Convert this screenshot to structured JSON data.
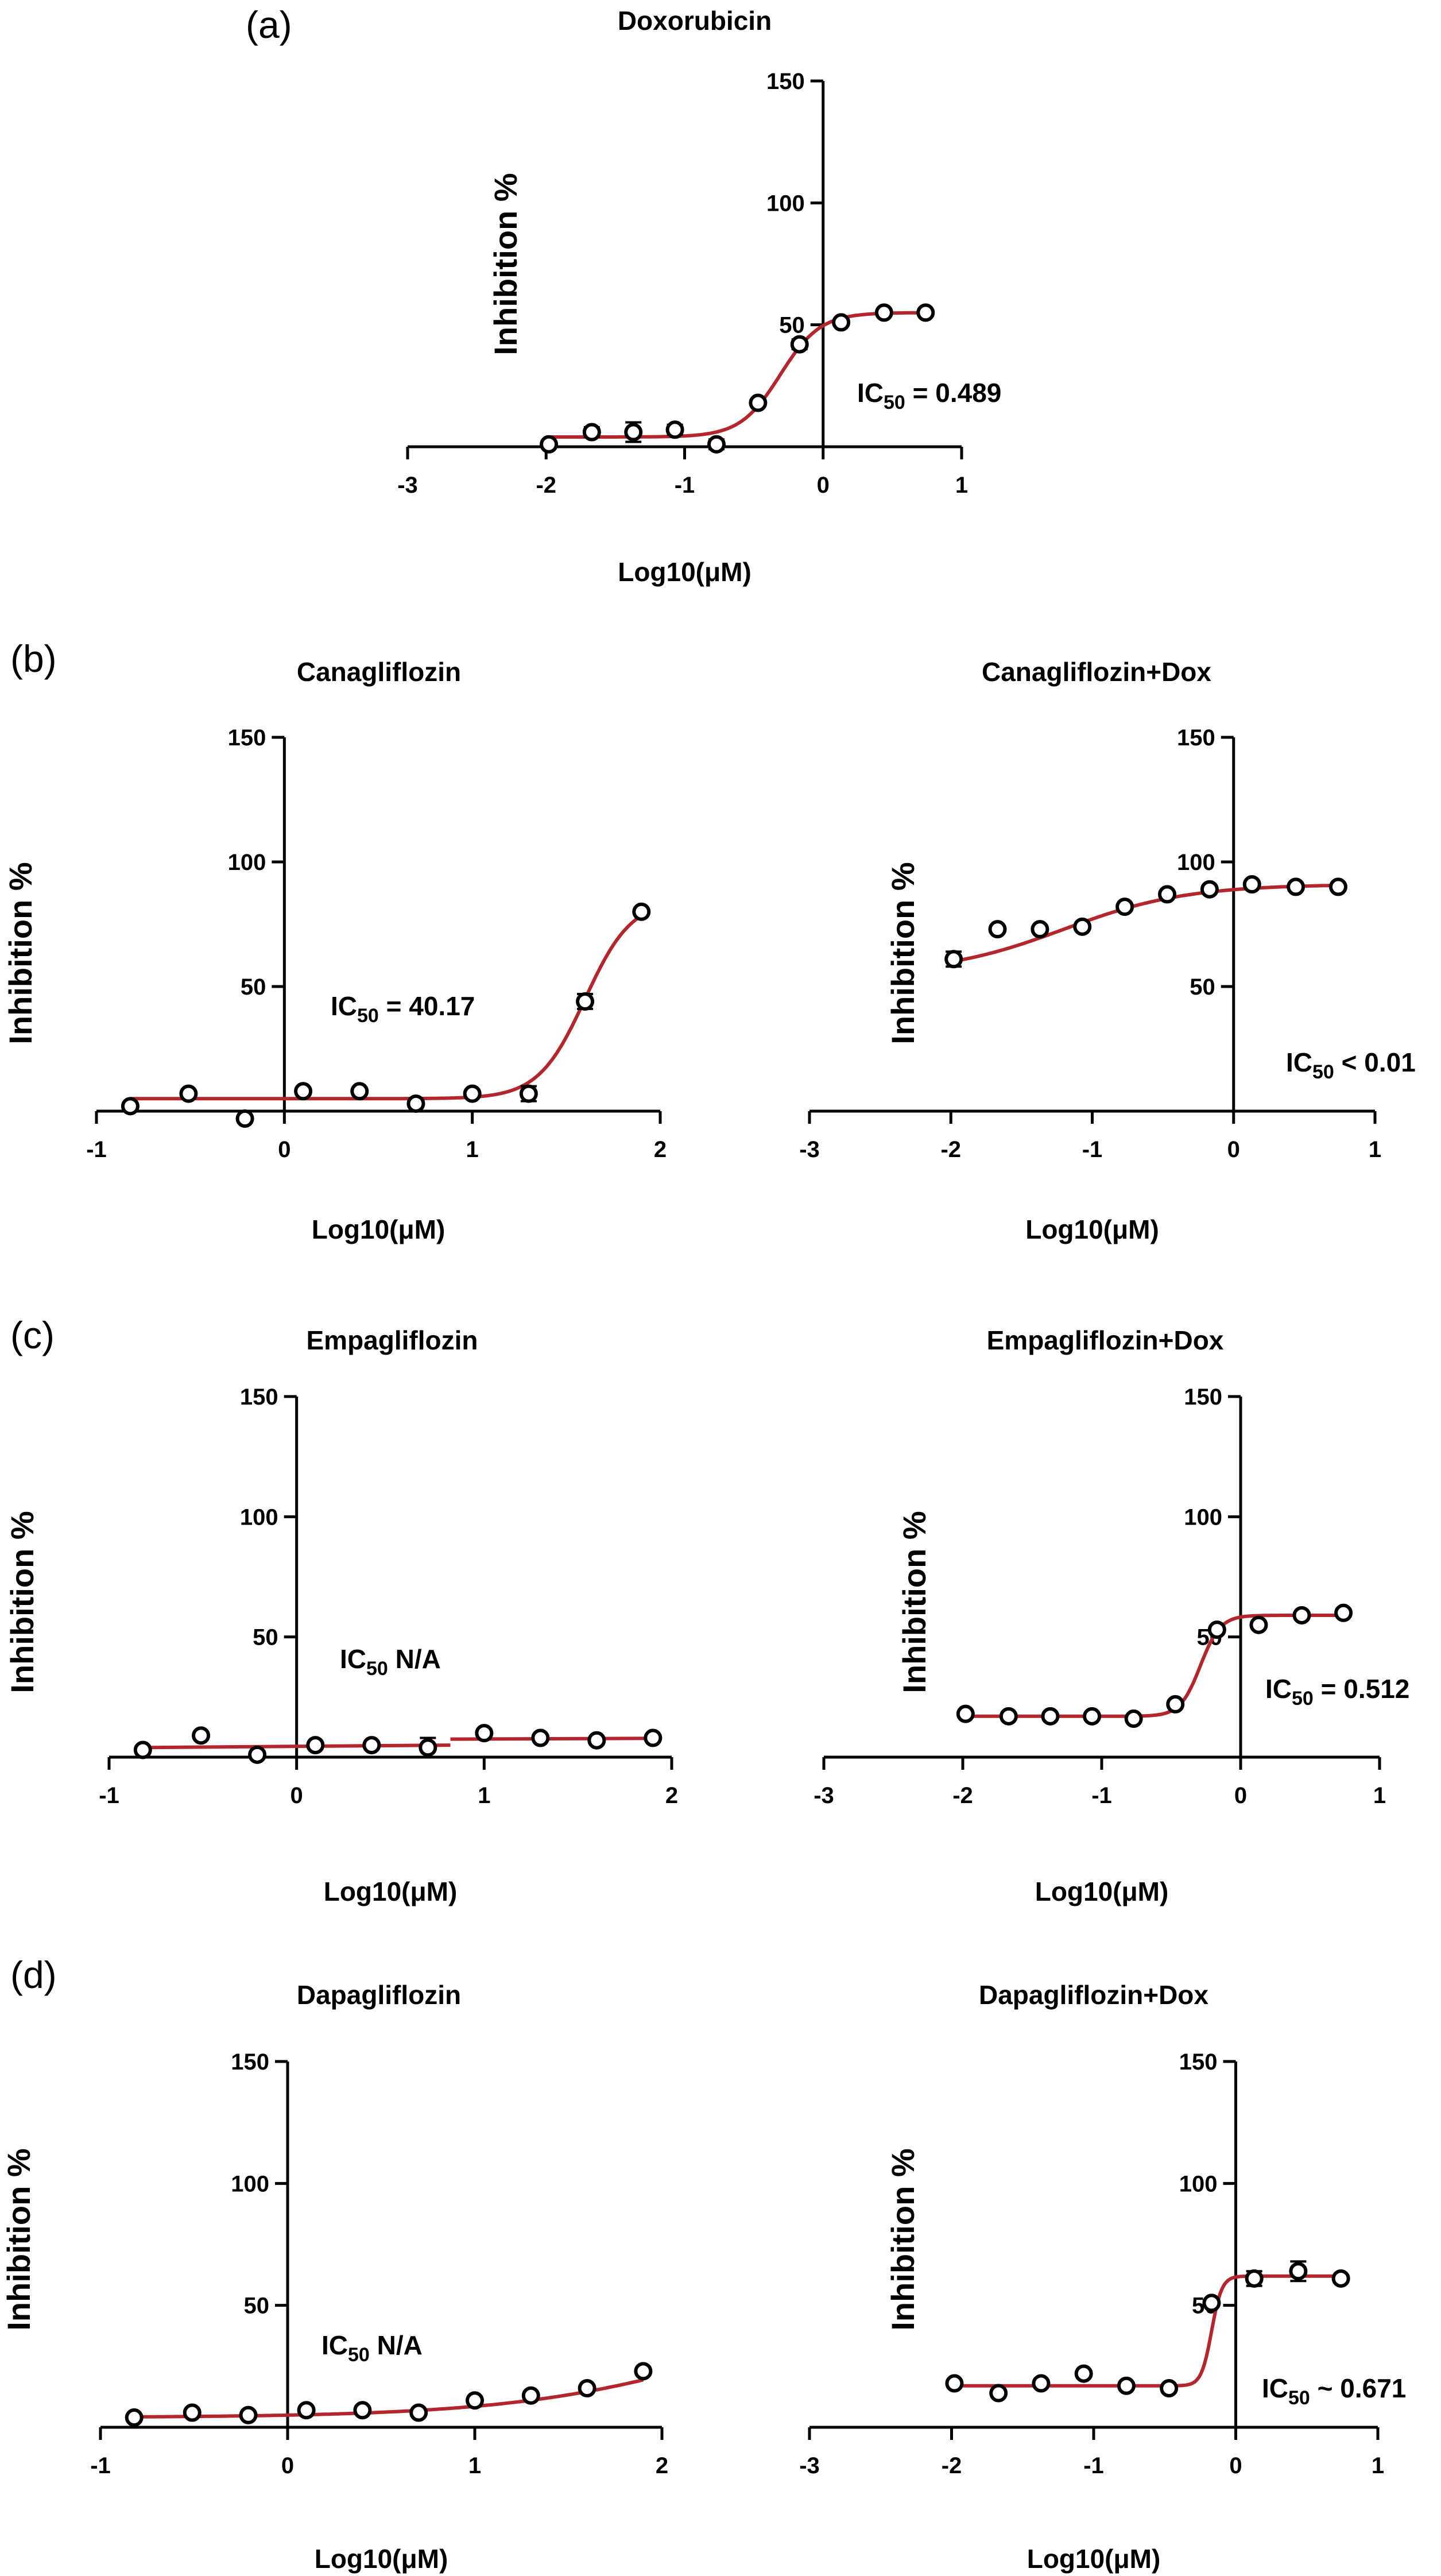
{
  "colors": {
    "curve": "#b3262b",
    "axis": "#000000",
    "marker": "#000000"
  },
  "panel_labels": [
    "(a)",
    "(b)",
    "(c)",
    "(d)"
  ],
  "chart_data": [
    {
      "type": "scatter",
      "title": "Doxorubicin",
      "xlabel": "Log10(μM)",
      "ylabel": "Inhibition %",
      "xlim": [
        -3,
        1
      ],
      "ylim": [
        0,
        150
      ],
      "xticks": [
        "-3",
        "-2",
        "-1",
        "0",
        "1"
      ],
      "yticks": [
        "50",
        "100",
        "150"
      ],
      "ic50": {
        "prefix": "IC",
        "sub": "50",
        "rest": " = 0.489"
      },
      "points": [
        {
          "x": -1.98,
          "y": 1,
          "err": 0
        },
        {
          "x": -1.67,
          "y": 6,
          "err": 2
        },
        {
          "x": -1.37,
          "y": 6,
          "err": 4
        },
        {
          "x": -1.07,
          "y": 7,
          "err": 2
        },
        {
          "x": -0.77,
          "y": 1,
          "err": 2
        },
        {
          "x": -0.47,
          "y": 18,
          "err": 1
        },
        {
          "x": -0.17,
          "y": 42,
          "err": 2
        },
        {
          "x": 0.13,
          "y": 51,
          "err": 1
        },
        {
          "x": 0.44,
          "y": 55,
          "err": 1
        },
        {
          "x": 0.74,
          "y": 55,
          "err": 1
        }
      ],
      "curve": {
        "bottom": 4,
        "top": 55,
        "logIC50": -0.31,
        "hill": 3,
        "xmin": -2.0,
        "xmax": 0.74
      }
    },
    {
      "type": "scatter",
      "title": "Canagliflozin",
      "xlabel": "Log10(μM)",
      "ylabel": "Inhibition %",
      "xlim": [
        -1,
        2
      ],
      "ylim": [
        0,
        150
      ],
      "xticks": [
        "-1",
        "0",
        "1",
        "2"
      ],
      "yticks": [
        "50",
        "100",
        "150"
      ],
      "ic50": {
        "prefix": "IC",
        "sub": "50",
        "rest": " = 40.17"
      },
      "points": [
        {
          "x": -0.82,
          "y": 2,
          "err": 1
        },
        {
          "x": -0.51,
          "y": 7,
          "err": 1
        },
        {
          "x": -0.21,
          "y": -3,
          "err": 1
        },
        {
          "x": 0.1,
          "y": 8,
          "err": 1
        },
        {
          "x": 0.4,
          "y": 8,
          "err": 1
        },
        {
          "x": 0.7,
          "y": 3,
          "err": 1
        },
        {
          "x": 1.0,
          "y": 7,
          "err": 1
        },
        {
          "x": 1.3,
          "y": 7,
          "err": 3
        },
        {
          "x": 1.6,
          "y": 44,
          "err": 3
        },
        {
          "x": 1.9,
          "y": 80,
          "err": 1
        }
      ],
      "curve": {
        "bottom": 5,
        "top": 85,
        "logIC50": 1.6,
        "hill": 3.5,
        "xmin": -0.82,
        "xmax": 1.9
      }
    },
    {
      "type": "scatter",
      "title": "Canagliflozin+Dox",
      "xlabel": "Log10(μM)",
      "ylabel": "Inhibition %",
      "xlim": [
        -3,
        1
      ],
      "ylim": [
        0,
        150
      ],
      "xticks": [
        "-3",
        "-2",
        "-1",
        "0",
        "1"
      ],
      "yticks": [
        "50",
        "100",
        "150"
      ],
      "ic50": {
        "prefix": "IC",
        "sub": "50",
        "rest": " < 0.01"
      },
      "points": [
        {
          "x": -1.98,
          "y": 61,
          "err": 3
        },
        {
          "x": -1.67,
          "y": 73,
          "err": 1
        },
        {
          "x": -1.37,
          "y": 73,
          "err": 1
        },
        {
          "x": -1.07,
          "y": 74,
          "err": 1
        },
        {
          "x": -0.77,
          "y": 82,
          "err": 1
        },
        {
          "x": -0.47,
          "y": 87,
          "err": 1
        },
        {
          "x": -0.17,
          "y": 89,
          "err": 1
        },
        {
          "x": 0.13,
          "y": 91,
          "err": 1
        },
        {
          "x": 0.44,
          "y": 90,
          "err": 1
        },
        {
          "x": 0.74,
          "y": 90,
          "err": 1
        }
      ],
      "curve": {
        "bottom": 55,
        "top": 91,
        "logIC50": -1.2,
        "hill": 1.0,
        "xmin": -2.0,
        "xmax": 0.74
      }
    },
    {
      "type": "scatter",
      "title": "Empagliflozin",
      "xlabel": "Log10(μM)",
      "ylabel": "Inhibition %",
      "xlim": [
        -1,
        2
      ],
      "ylim": [
        0,
        150
      ],
      "xticks": [
        "-1",
        "0",
        "1",
        "2"
      ],
      "yticks": [
        "50",
        "100",
        "150"
      ],
      "ic50": {
        "prefix": "IC",
        "sub": "50",
        "rest": " N/A"
      },
      "points": [
        {
          "x": -0.82,
          "y": 3,
          "err": 1
        },
        {
          "x": -0.51,
          "y": 9,
          "err": 1
        },
        {
          "x": -0.21,
          "y": 1,
          "err": 1
        },
        {
          "x": 0.1,
          "y": 5,
          "err": 1
        },
        {
          "x": 0.4,
          "y": 5,
          "err": 1
        },
        {
          "x": 0.7,
          "y": 4,
          "err": 4
        },
        {
          "x": 1.0,
          "y": 10,
          "err": 1
        },
        {
          "x": 1.3,
          "y": 8,
          "err": 1
        },
        {
          "x": 1.6,
          "y": 7,
          "err": 1
        },
        {
          "x": 1.9,
          "y": 8,
          "err": 1
        }
      ],
      "curve": {
        "segments": [
          [
            [
              -0.82,
              4
            ],
            [
              0.82,
              5
            ]
          ],
          [
            [
              0.82,
              7.5
            ],
            [
              1.9,
              7.8
            ]
          ]
        ]
      }
    },
    {
      "type": "scatter",
      "title": "Empagliflozin+Dox",
      "xlabel": "Log10(μM)",
      "ylabel": "Inhibition %",
      "xlim": [
        -3,
        1
      ],
      "ylim": [
        0,
        150
      ],
      "xticks": [
        "-3",
        "-2",
        "-1",
        "0",
        "1"
      ],
      "yticks": [
        "50",
        "100",
        "150"
      ],
      "ic50": {
        "prefix": "IC",
        "sub": "50",
        "rest": " = 0.512"
      },
      "points": [
        {
          "x": -1.98,
          "y": 18,
          "err": 1
        },
        {
          "x": -1.67,
          "y": 17,
          "err": 1
        },
        {
          "x": -1.37,
          "y": 17,
          "err": 1
        },
        {
          "x": -1.07,
          "y": 17,
          "err": 1
        },
        {
          "x": -0.77,
          "y": 16,
          "err": 1
        },
        {
          "x": -0.47,
          "y": 22,
          "err": 1
        },
        {
          "x": -0.17,
          "y": 53,
          "err": 1
        },
        {
          "x": 0.13,
          "y": 55,
          "err": 1
        },
        {
          "x": 0.44,
          "y": 59,
          "err": 1
        },
        {
          "x": 0.74,
          "y": 60,
          "err": 1
        }
      ],
      "curve": {
        "bottom": 17,
        "top": 59,
        "logIC50": -0.29,
        "hill": 6,
        "xmin": -2.0,
        "xmax": 0.74
      }
    },
    {
      "type": "scatter",
      "title": "Dapagliflozin",
      "xlabel": "Log10(μM)",
      "ylabel": "Inhibition %",
      "xlim": [
        -1,
        2
      ],
      "ylim": [
        0,
        150
      ],
      "xticks": [
        "-1",
        "0",
        "1",
        "2"
      ],
      "yticks": [
        "50",
        "100",
        "150"
      ],
      "ic50": {
        "prefix": "IC",
        "sub": "50",
        "rest": " N/A"
      },
      "points": [
        {
          "x": -0.82,
          "y": 4,
          "err": 1
        },
        {
          "x": -0.51,
          "y": 6,
          "err": 1
        },
        {
          "x": -0.21,
          "y": 5,
          "err": 1
        },
        {
          "x": 0.1,
          "y": 7,
          "err": 1
        },
        {
          "x": 0.4,
          "y": 7,
          "err": 1
        },
        {
          "x": 0.7,
          "y": 6,
          "err": 1
        },
        {
          "x": 1.0,
          "y": 11,
          "err": 1
        },
        {
          "x": 1.3,
          "y": 13,
          "err": 1
        },
        {
          "x": 1.6,
          "y": 16,
          "err": 1
        },
        {
          "x": 1.9,
          "y": 23,
          "err": 1
        }
      ],
      "curve": {
        "bottom": 4,
        "top": 60,
        "logIC50": 2.5,
        "hill": 0.7,
        "xmin": -0.82,
        "xmax": 1.9
      }
    },
    {
      "type": "scatter",
      "title": "Dapagliflozin+Dox",
      "xlabel": "Log10(μM)",
      "ylabel": "Inhibition %",
      "xlim": [
        -3,
        1
      ],
      "ylim": [
        0,
        150
      ],
      "xticks": [
        "-3",
        "-2",
        "-1",
        "0",
        "1"
      ],
      "yticks": [
        "50",
        "100",
        "150"
      ],
      "ic50": {
        "prefix": "IC",
        "sub": "50",
        "rest": " ~ 0.671"
      },
      "points": [
        {
          "x": -1.98,
          "y": 18,
          "err": 1
        },
        {
          "x": -1.67,
          "y": 14,
          "err": 1
        },
        {
          "x": -1.37,
          "y": 18,
          "err": 1
        },
        {
          "x": -1.07,
          "y": 22,
          "err": 1
        },
        {
          "x": -0.77,
          "y": 17,
          "err": 1
        },
        {
          "x": -0.47,
          "y": 16,
          "err": 1
        },
        {
          "x": -0.17,
          "y": 51,
          "err": 1
        },
        {
          "x": 0.13,
          "y": 61,
          "err": 3
        },
        {
          "x": 0.44,
          "y": 64,
          "err": 4
        },
        {
          "x": 0.74,
          "y": 61,
          "err": 1
        }
      ],
      "curve": {
        "bottom": 17,
        "top": 62,
        "logIC50": -0.17,
        "hill": 12,
        "xmin": -2.0,
        "xmax": 0.74
      }
    }
  ]
}
